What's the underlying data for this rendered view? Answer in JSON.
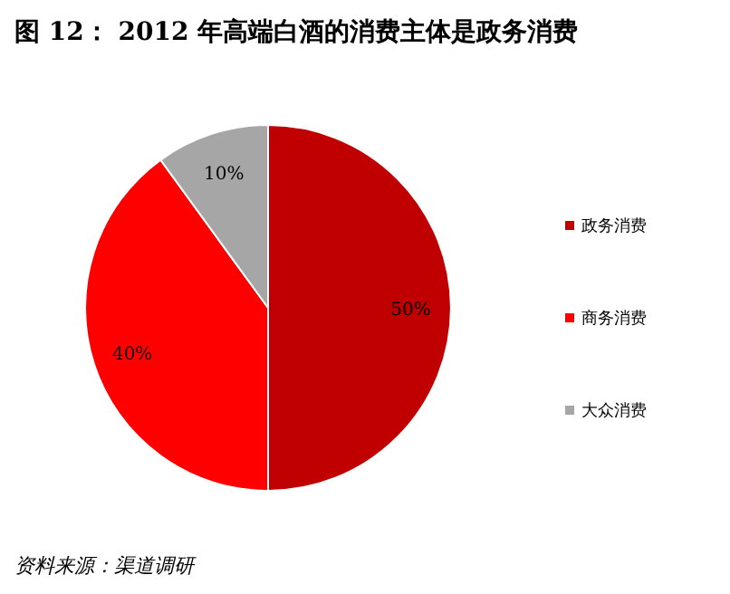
{
  "chart_data": {
    "type": "pie",
    "title": "图 12： 2012 年高端白酒的消费主体是政务消费",
    "categories": [
      "政务消费",
      "商务消费",
      "大众消费"
    ],
    "values": [
      50,
      40,
      10
    ],
    "value_labels": [
      "50%",
      "40%",
      "10%"
    ],
    "colors": [
      "#c00000",
      "#ff0000",
      "#a6a6a6"
    ],
    "legend": "right",
    "annotations": [
      "资料来源：渠道调研"
    ]
  }
}
